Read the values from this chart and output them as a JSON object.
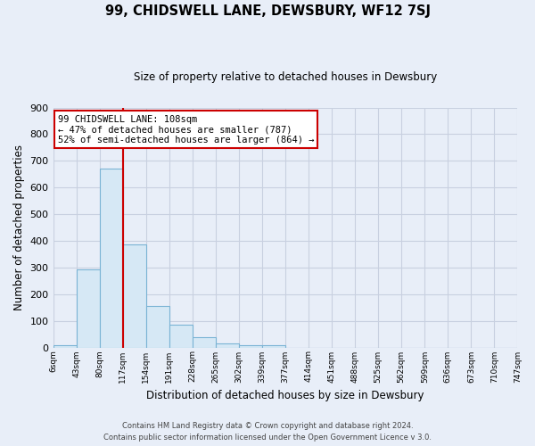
{
  "title": "99, CHIDSWELL LANE, DEWSBURY, WF12 7SJ",
  "subtitle": "Size of property relative to detached houses in Dewsbury",
  "xlabel": "Distribution of detached houses by size in Dewsbury",
  "ylabel": "Number of detached properties",
  "bar_values": [
    8,
    293,
    672,
    387,
    154,
    85,
    40,
    15,
    10,
    10,
    0,
    0,
    0,
    0,
    0,
    0,
    0,
    0,
    0,
    0
  ],
  "tick_labels": [
    "6sqm",
    "43sqm",
    "80sqm",
    "117sqm",
    "154sqm",
    "191sqm",
    "228sqm",
    "265sqm",
    "302sqm",
    "339sqm",
    "377sqm",
    "414sqm",
    "451sqm",
    "488sqm",
    "525sqm",
    "562sqm",
    "599sqm",
    "636sqm",
    "673sqm",
    "710sqm",
    "747sqm"
  ],
  "bar_color": "#d6e8f5",
  "bar_edge_color": "#7ab3d4",
  "vline_color": "#cc0000",
  "annotation_title": "99 CHIDSWELL LANE: 108sqm",
  "annotation_line1": "← 47% of detached houses are smaller (787)",
  "annotation_line2": "52% of semi-detached houses are larger (864) →",
  "annotation_box_color": "#ffffff",
  "annotation_box_edge": "#cc0000",
  "ylim": [
    0,
    900
  ],
  "yticks": [
    0,
    100,
    200,
    300,
    400,
    500,
    600,
    700,
    800,
    900
  ],
  "footer1": "Contains HM Land Registry data © Crown copyright and database right 2024.",
  "footer2": "Contains public sector information licensed under the Open Government Licence v 3.0.",
  "bg_color": "#e8eef8",
  "grid_color": "#c8d0e0",
  "n_bars": 20,
  "vline_pos": 3
}
